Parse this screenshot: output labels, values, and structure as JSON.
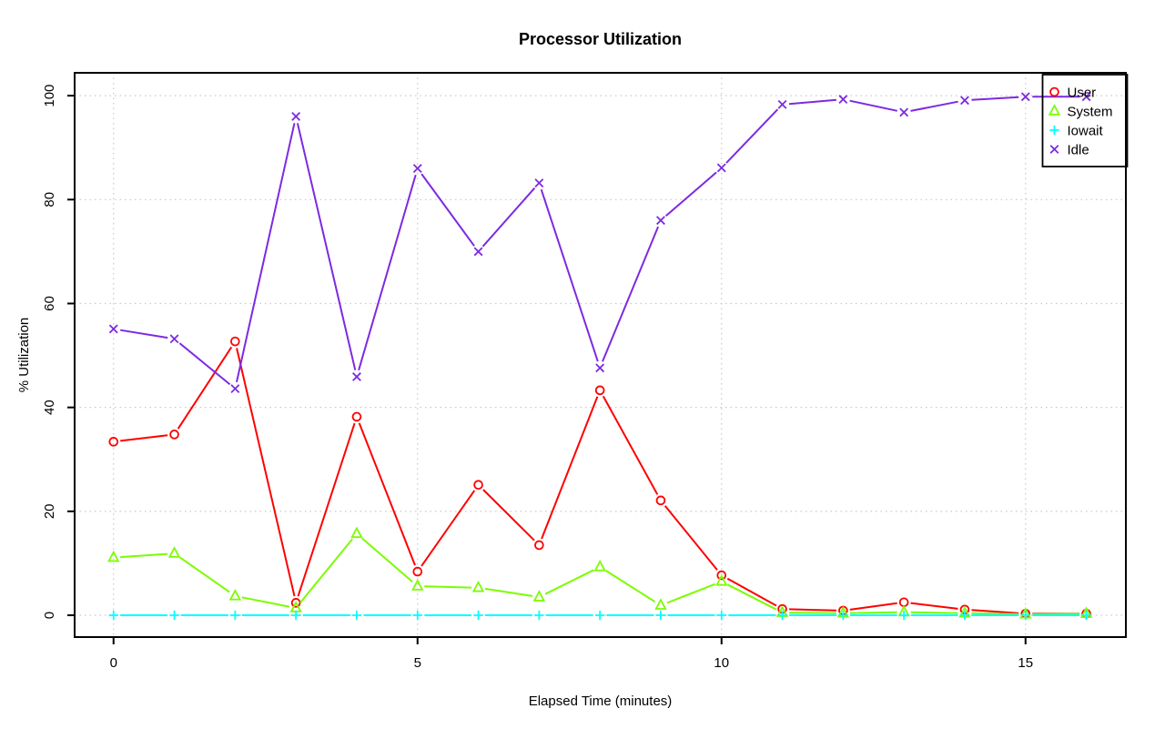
{
  "page": {
    "background": "#ffffff"
  },
  "chart_data": {
    "type": "line",
    "title": "Processor Utilization",
    "xlabel": "Elapsed Time (minutes)",
    "ylabel": "% Utilization",
    "x": [
      0,
      1,
      2,
      3,
      4,
      5,
      6,
      7,
      8,
      9,
      10,
      11,
      12,
      13,
      14,
      15,
      16
    ],
    "series": [
      {
        "name": "User",
        "color": "#FF0000",
        "marker": "circle",
        "values": [
          33.4,
          34.8,
          52.7,
          2.4,
          38.2,
          8.4,
          25.1,
          13.5,
          43.3,
          22.1,
          7.7,
          1.2,
          0.9,
          2.5,
          1.1,
          0.3,
          0.3
        ]
      },
      {
        "name": "System",
        "color": "#7CFC00",
        "marker": "triangle",
        "values": [
          11.1,
          11.9,
          3.7,
          1.4,
          15.7,
          5.6,
          5.3,
          3.5,
          9.3,
          1.9,
          6.5,
          0.5,
          0.4,
          0.6,
          0.4,
          0.2,
          0.3
        ]
      },
      {
        "name": "Iowait",
        "color": "#00FFFF",
        "marker": "plus",
        "values": [
          0,
          0,
          0,
          0,
          0,
          0,
          0,
          0,
          0,
          0,
          0,
          0,
          0,
          0,
          0,
          0,
          0
        ]
      },
      {
        "name": "Idle",
        "color": "#7D2AE0",
        "marker": "x",
        "values": [
          55.1,
          53.2,
          43.6,
          96.0,
          45.9,
          86.0,
          70.0,
          83.2,
          47.6,
          76.0,
          86.1,
          98.3,
          99.3,
          96.8,
          99.1,
          99.8,
          99.8
        ]
      }
    ],
    "xticks": [
      0,
      5,
      10,
      15
    ],
    "yticks": [
      0,
      20,
      40,
      60,
      80,
      100
    ],
    "xlim": [
      -0.64,
      16.65
    ],
    "ylim": [
      -4.2,
      104.4
    ],
    "grid": true,
    "grid_color": "#C8C8C8",
    "axis_color": "#000000",
    "legend": {
      "position": "top-right",
      "entries": [
        "User",
        "System",
        "Iowait",
        "Idle"
      ]
    }
  }
}
